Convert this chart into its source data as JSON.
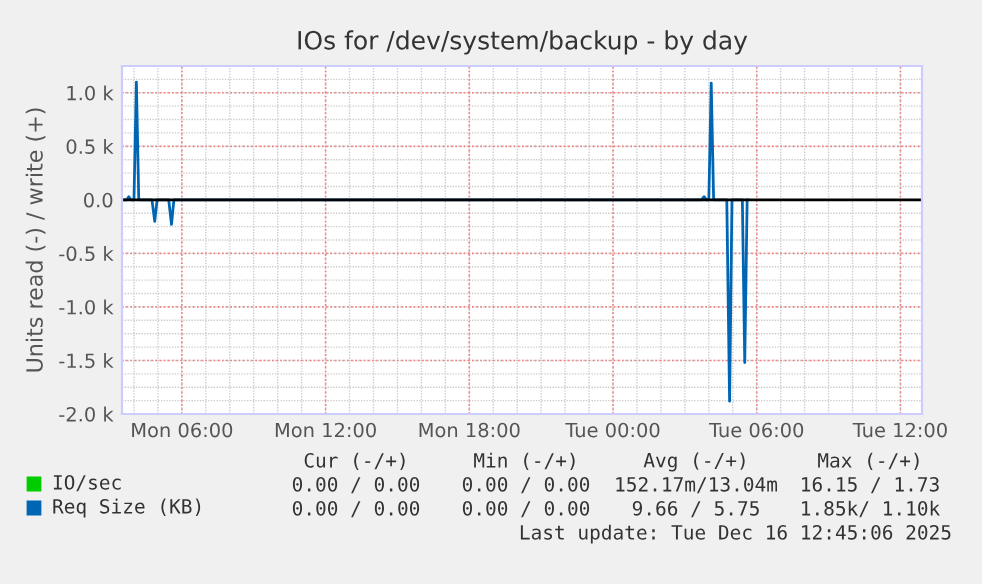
{
  "chart_data": {
    "type": "line",
    "title": "IOs for /dev/system/backup - by day",
    "ylabel": "Units read (-) / write (+)",
    "xlim": [
      "2025-12-15T03:30",
      "2025-12-16T12:54"
    ],
    "xticks": [
      {
        "value": "2025-12-15T06:00",
        "label": "Mon 06:00"
      },
      {
        "value": "2025-12-15T12:00",
        "label": "Mon 12:00"
      },
      {
        "value": "2025-12-15T18:00",
        "label": "Mon 18:00"
      },
      {
        "value": "2025-12-16T00:00",
        "label": "Tue 00:00"
      },
      {
        "value": "2025-12-16T06:00",
        "label": "Tue 06:00"
      },
      {
        "value": "2025-12-16T12:00",
        "label": "Tue 12:00"
      }
    ],
    "ylim": [
      -2000,
      1250
    ],
    "yticks": [
      {
        "value": -2000,
        "label": "-2.0 k"
      },
      {
        "value": -1500,
        "label": "-1.5 k"
      },
      {
        "value": -1000,
        "label": "-1.0 k"
      },
      {
        "value": -500,
        "label": "-0.5 k"
      },
      {
        "value": 0,
        "label": "0.0"
      },
      {
        "value": 500,
        "label": "0.5 k"
      },
      {
        "value": 1000,
        "label": "1.0 k"
      }
    ],
    "grid": true,
    "legend": "bottom left",
    "series": [
      {
        "name": "IO/sec",
        "color": "#00cc00",
        "values": [
          null
        ]
      },
      {
        "name": "Req Size (KB)",
        "color": "#0066b3",
        "x": [
          "2025-12-15T03:36",
          "2025-12-15T03:42",
          "2025-12-15T03:47",
          "2025-12-15T03:52",
          "2025-12-15T04:00",
          "2025-12-15T04:06",
          "2025-12-15T04:12",
          "2025-12-15T04:45",
          "2025-12-15T04:52",
          "2025-12-15T04:58",
          "2025-12-15T05:27",
          "2025-12-15T05:34",
          "2025-12-15T05:40",
          "2025-12-16T03:42",
          "2025-12-16T03:48",
          "2025-12-16T03:54",
          "2025-12-16T04:00",
          "2025-12-16T04:06",
          "2025-12-16T04:12",
          "2025-12-16T04:45",
          "2025-12-16T04:52",
          "2025-12-16T04:58",
          "2025-12-16T05:24",
          "2025-12-16T05:30",
          "2025-12-16T05:36"
        ],
        "values": [
          0,
          0,
          30,
          0,
          0,
          1100,
          0,
          0,
          -200,
          0,
          0,
          -230,
          0,
          0,
          30,
          0,
          0,
          1090,
          0,
          0,
          -1880,
          0,
          0,
          -1520,
          0
        ]
      }
    ],
    "ref_lines": [
      {
        "axis": "y",
        "value": 0,
        "color": "#000000"
      }
    ],
    "annotations": [
      "Cur (-/+)",
      "Min (-/+)",
      "Avg (-/+)",
      "Max (-/+)",
      "0.00 / 0.00",
      "0.00 / 0.00",
      "152.17m/13.04m",
      "16.15 / 1.73",
      "0.00 / 0.00",
      "0.00 / 0.00",
      "9.66 / 5.75",
      "1.85k/ 1.10k",
      "Last update: Tue Dec 16 12:45:06 2025"
    ]
  }
}
